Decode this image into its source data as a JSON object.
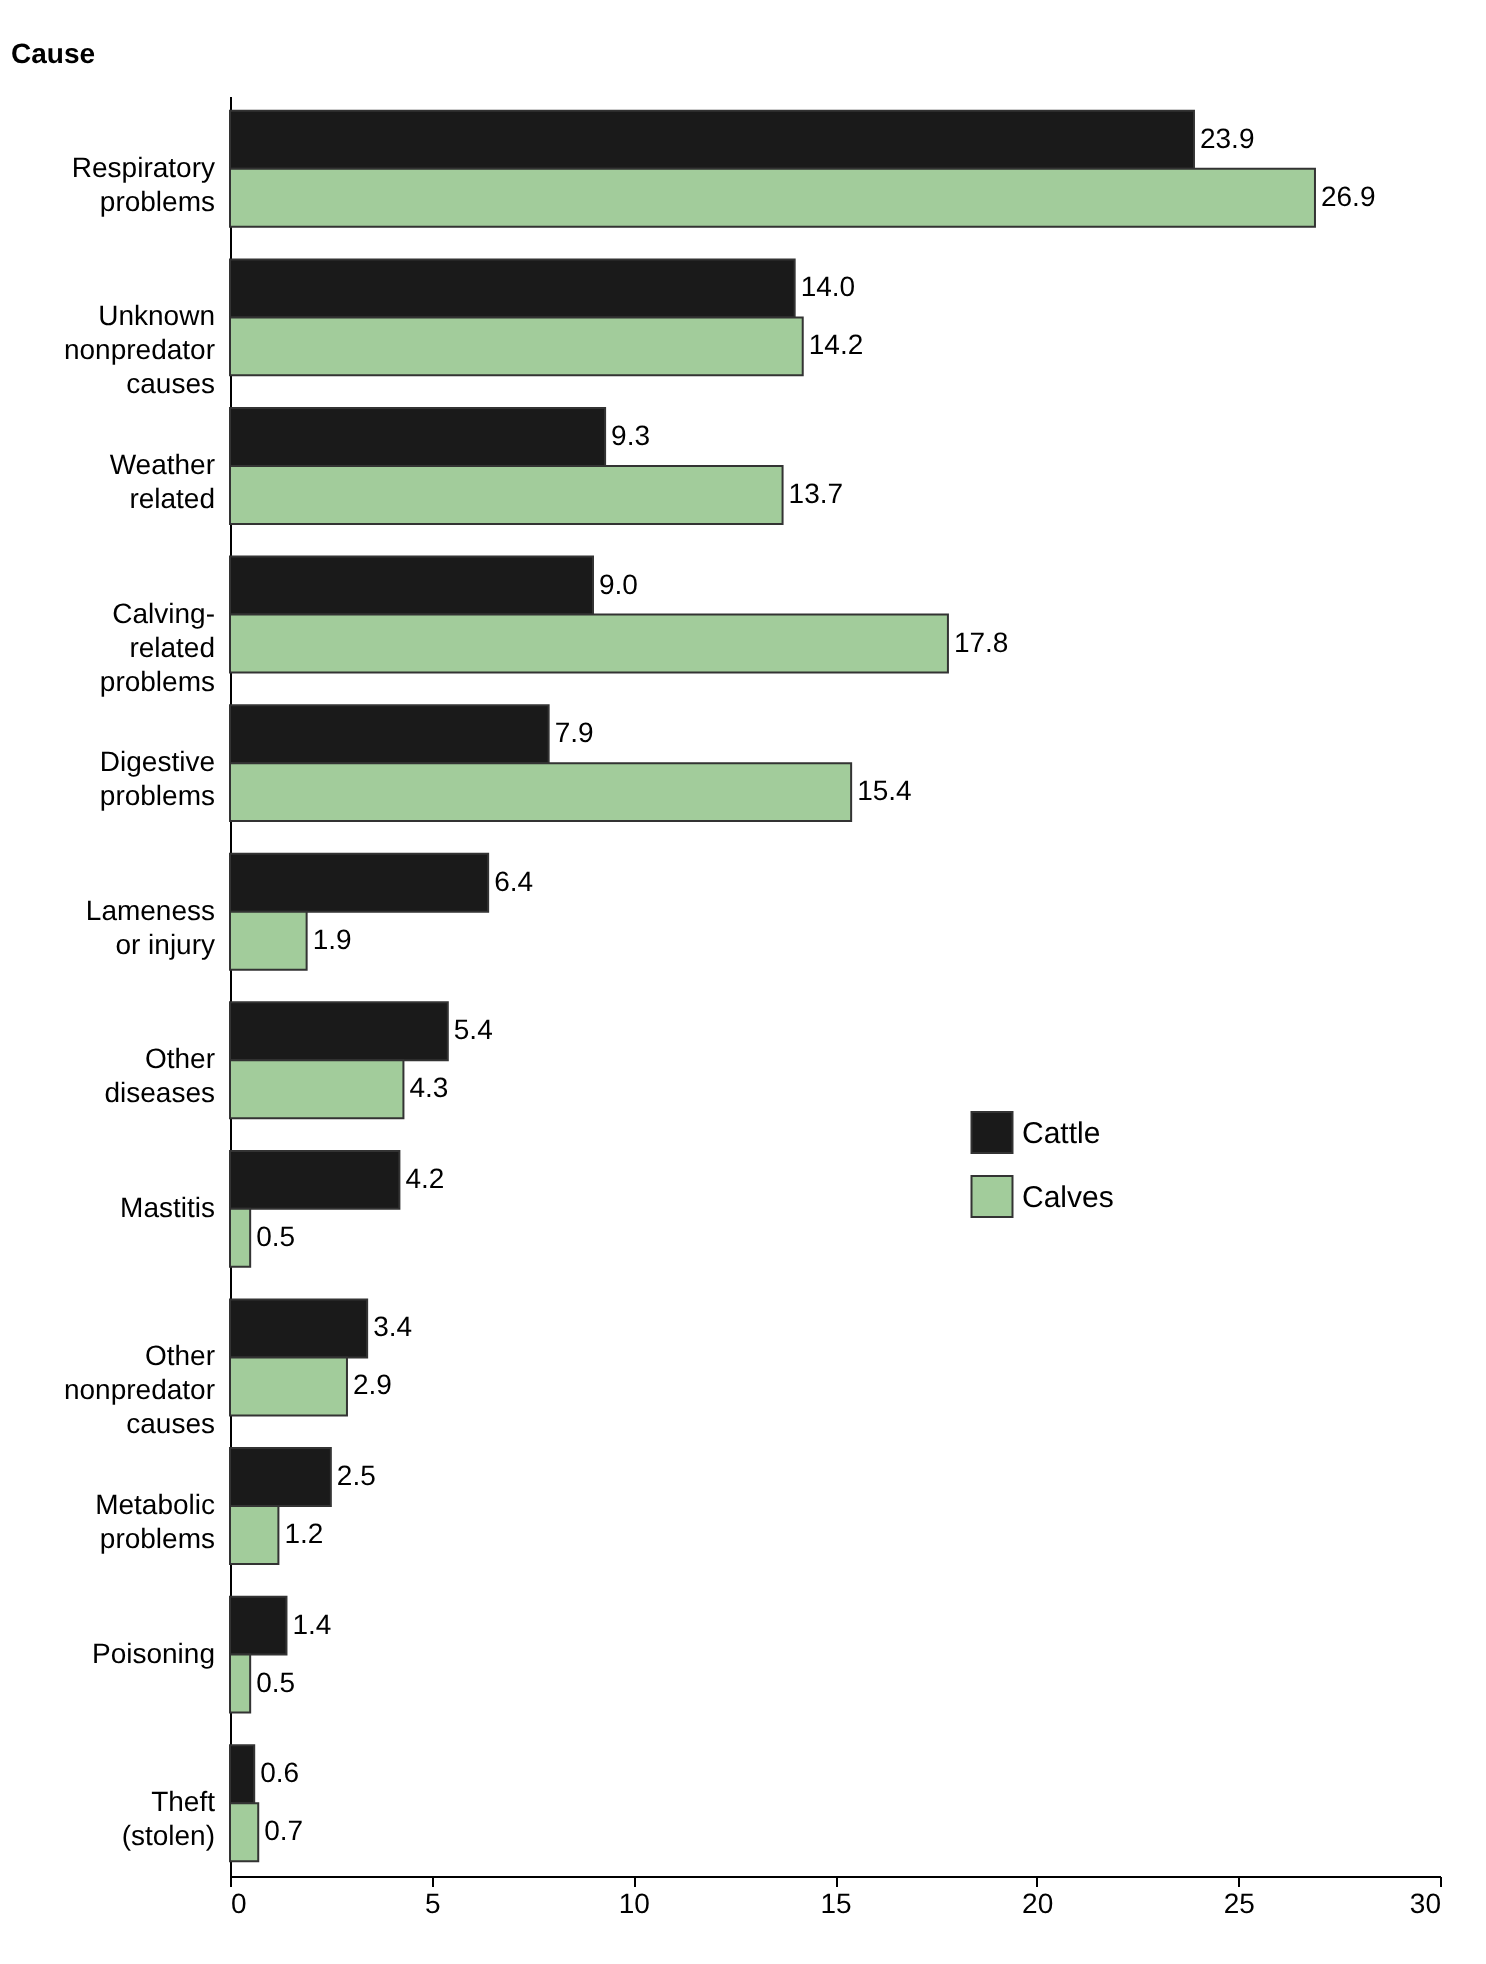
{
  "chart_data": {
    "type": "bar",
    "orientation": "horizontal",
    "ylabel": "Cause",
    "categories": [
      "Respiratory problems",
      "Unknown nonpredator causes",
      "Weather related",
      "Calving-related problems",
      "Digestive problems",
      "Lameness or injury",
      "Other diseases",
      "Mastitis",
      "Other nonpredator causes",
      "Metabolic problems",
      "Poisoning",
      "Theft (stolen)"
    ],
    "series": [
      {
        "name": "Cattle",
        "color": "#1a1a1a",
        "values": [
          23.9,
          14.0,
          9.3,
          9.0,
          7.9,
          6.4,
          5.4,
          4.2,
          3.4,
          2.5,
          1.4,
          0.6
        ],
        "value_labels": [
          "23.9",
          "14.0",
          "9.3",
          "9.0",
          "7.9",
          "6.4",
          "5.4",
          "4.2",
          "3.4",
          "2.5",
          "1.4",
          "0.6"
        ]
      },
      {
        "name": "Calves",
        "color": "#a2cc9b",
        "values": [
          26.9,
          14.2,
          13.7,
          17.8,
          15.4,
          1.9,
          4.3,
          0.5,
          2.9,
          1.2,
          0.5,
          0.7
        ],
        "value_labels": [
          "26.9",
          "14.2",
          "13.7",
          "17.8",
          "15.4",
          "1.9",
          "4.3",
          "0.5",
          "2.9",
          "1.2",
          "0.5",
          "0.7"
        ]
      }
    ],
    "xlim": [
      0,
      30
    ],
    "xticks": [
      0,
      5,
      10,
      15,
      20,
      25,
      30
    ],
    "legend": "right"
  }
}
